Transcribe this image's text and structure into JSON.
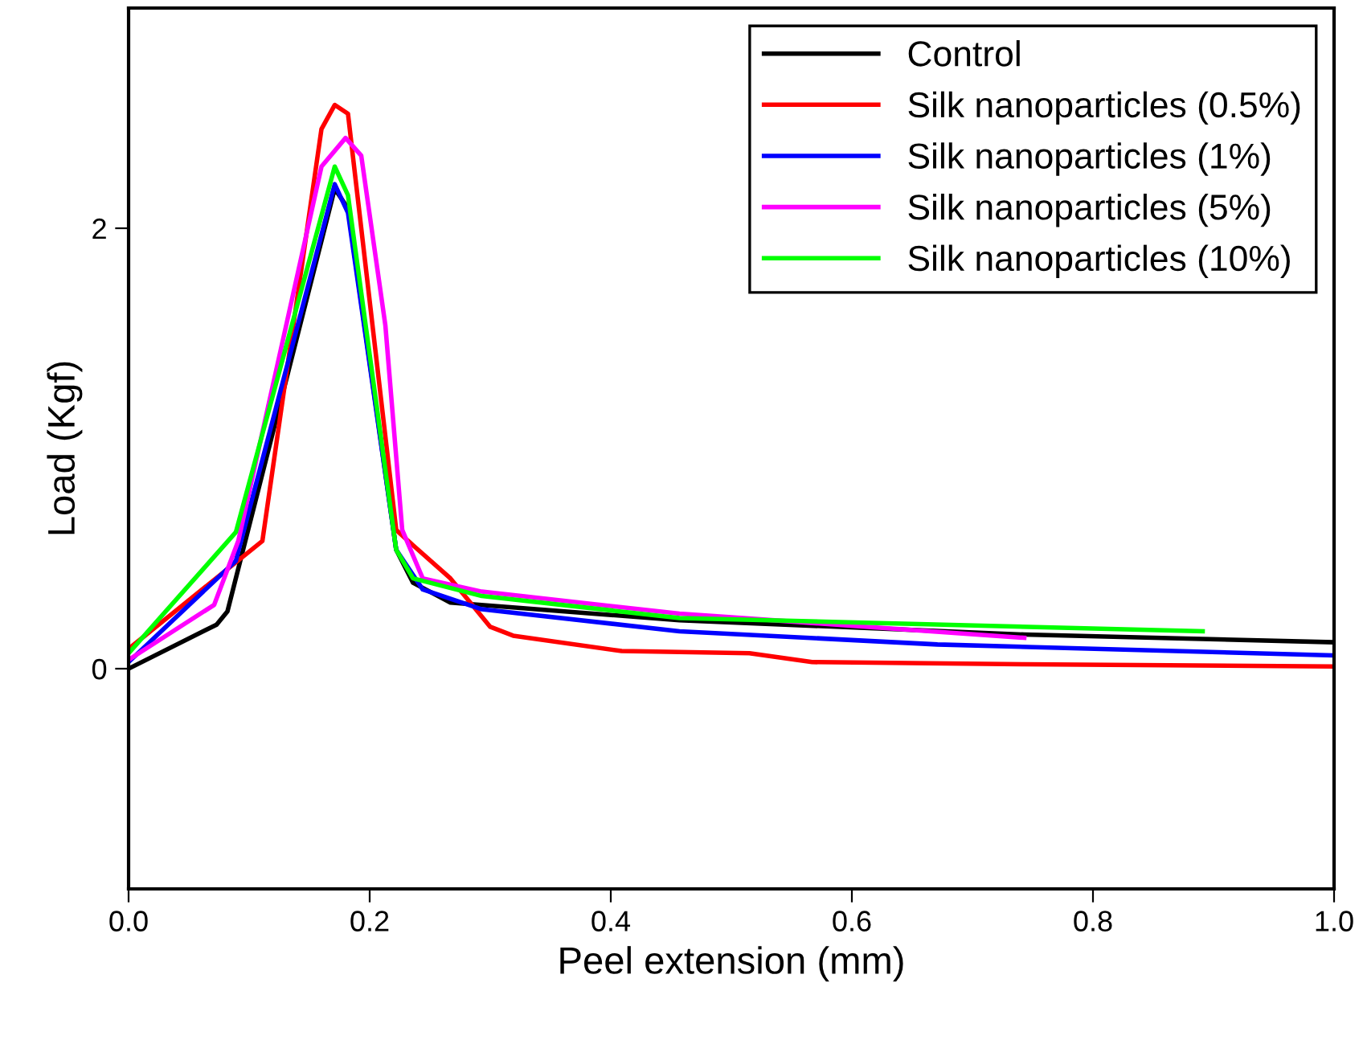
{
  "chart_data": {
    "type": "line",
    "xlabel": "Peel extension (mm)",
    "ylabel": "Load (Kgf)",
    "xlim": [
      0,
      1
    ],
    "ylim": [
      -1,
      3
    ],
    "xticks": [
      {
        "value": 0,
        "label": "0.0"
      },
      {
        "value": 0.2,
        "label": "0.2"
      },
      {
        "value": 0.4,
        "label": "0.4"
      },
      {
        "value": 0.6,
        "label": "0.6"
      },
      {
        "value": 0.8,
        "label": "0.8"
      },
      {
        "value": 1,
        "label": "1.0"
      }
    ],
    "yticks": [
      0,
      2
    ],
    "grid": false,
    "legend": "top right",
    "marker": "none",
    "line_style": "solid",
    "series": [
      {
        "name": "Control",
        "color": "#000000",
        "x": [
          0,
          0.073,
          0.082,
          0.171,
          0.182,
          0.222,
          0.236,
          0.267,
          0.457,
          0.743,
          1.0
        ],
        "values": [
          0,
          0.2,
          0.26,
          2.18,
          2.09,
          0.54,
          0.39,
          0.3,
          0.22,
          0.155,
          0.12
        ]
      },
      {
        "name": "Silk nanoparticles (0.5%)",
        "color": "#ff0000",
        "x": [
          0,
          0.111,
          0.16,
          0.171,
          0.182,
          0.222,
          0.236,
          0.267,
          0.3,
          0.319,
          0.409,
          0.515,
          0.567,
          0.743,
          1.0
        ],
        "values": [
          0.09,
          0.58,
          2.45,
          2.56,
          2.52,
          0.63,
          0.56,
          0.41,
          0.19,
          0.15,
          0.08,
          0.07,
          0.03,
          0.02,
          0.01
        ]
      },
      {
        "name": "Silk nanoparticles (1%)",
        "color": "#0000ff",
        "x": [
          0,
          0.089,
          0.171,
          0.182,
          0.222,
          0.244,
          0.293,
          0.457,
          0.671,
          1.0
        ],
        "values": [
          0.03,
          0.49,
          2.2,
          2.07,
          0.54,
          0.36,
          0.27,
          0.17,
          0.11,
          0.06
        ]
      },
      {
        "name": "Silk nanoparticles (5%)",
        "color": "#ff00ff",
        "x": [
          0,
          0.071,
          0.091,
          0.16,
          0.18,
          0.193,
          0.213,
          0.227,
          0.244,
          0.293,
          0.457,
          0.743
        ],
        "values": [
          0.04,
          0.29,
          0.58,
          2.28,
          2.41,
          2.33,
          1.56,
          0.63,
          0.41,
          0.35,
          0.25,
          0.14
        ]
      },
      {
        "name": "Silk nanoparticles (10%)",
        "color": "#00ff00",
        "x": [
          0,
          0.089,
          0.171,
          0.182,
          0.222,
          0.236,
          0.293,
          0.457,
          0.891
        ],
        "values": [
          0.07,
          0.62,
          2.28,
          2.15,
          0.54,
          0.41,
          0.33,
          0.23,
          0.17
        ]
      }
    ]
  }
}
